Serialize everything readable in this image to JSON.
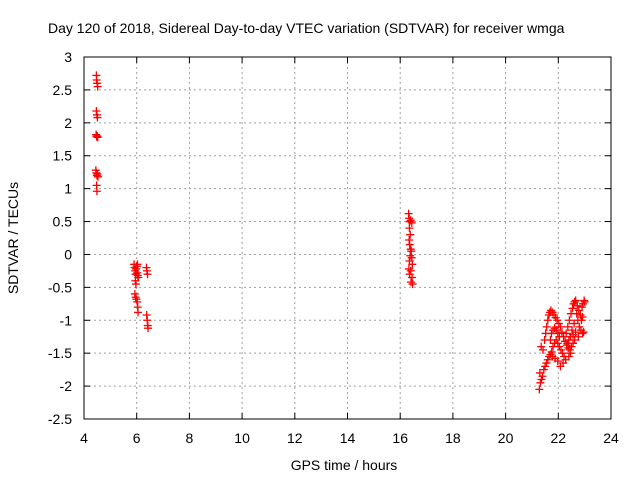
{
  "chart_data": {
    "type": "scatter",
    "title": "Day 120 of 2018, Sidereal Day-to-day VTEC variation (SDTVAR) for receiver wmga",
    "xlabel": "GPS time / hours",
    "ylabel": "SDTVAR / TECUs",
    "xlim": [
      4,
      24
    ],
    "ylim": [
      -2.5,
      3
    ],
    "xticks": [
      4,
      6,
      8,
      10,
      12,
      14,
      16,
      18,
      20,
      22,
      24
    ],
    "xtick_labels": [
      "4",
      "6",
      "8",
      "10",
      "12",
      "14",
      "16",
      "18",
      "20",
      "22",
      "24"
    ],
    "yticks": [
      -2.5,
      -2,
      -1.5,
      -1,
      -0.5,
      0,
      0.5,
      1,
      1.5,
      2,
      2.5,
      3
    ],
    "ytick_labels": [
      "-2.5",
      "-2",
      "-1.5",
      "-1",
      "-0.5",
      "0",
      "0.5",
      "1",
      "1.5",
      "2",
      "2.5",
      "3"
    ],
    "grid": true,
    "marker": "+",
    "marker_color": "#ff0000",
    "series": [
      {
        "name": "SDTVAR",
        "points": [
          [
            4.47,
            2.72
          ],
          [
            4.48,
            2.65
          ],
          [
            4.5,
            2.6
          ],
          [
            4.52,
            2.55
          ],
          [
            4.47,
            2.18
          ],
          [
            4.49,
            2.12
          ],
          [
            4.51,
            2.08
          ],
          [
            4.46,
            1.82
          ],
          [
            4.48,
            1.79
          ],
          [
            4.5,
            1.8
          ],
          [
            4.52,
            1.78
          ],
          [
            4.45,
            1.28
          ],
          [
            4.47,
            1.24
          ],
          [
            4.49,
            1.2
          ],
          [
            4.51,
            1.22
          ],
          [
            4.53,
            1.18
          ],
          [
            4.48,
            1.05
          ],
          [
            4.49,
            0.96
          ],
          [
            5.9,
            -0.15
          ],
          [
            5.92,
            -0.2
          ],
          [
            5.94,
            -0.25
          ],
          [
            5.96,
            -0.3
          ],
          [
            5.98,
            -0.22
          ],
          [
            6.0,
            -0.18
          ],
          [
            6.02,
            -0.28
          ],
          [
            6.04,
            -0.32
          ],
          [
            6.06,
            -0.35
          ],
          [
            6.03,
            -0.15
          ],
          [
            5.95,
            -0.4
          ],
          [
            5.97,
            -0.45
          ],
          [
            5.93,
            -0.6
          ],
          [
            5.96,
            -0.65
          ],
          [
            5.99,
            -0.68
          ],
          [
            6.02,
            -0.72
          ],
          [
            6.04,
            -0.8
          ],
          [
            6.05,
            -0.88
          ],
          [
            6.37,
            -0.2
          ],
          [
            6.39,
            -0.25
          ],
          [
            6.41,
            -0.3
          ],
          [
            6.38,
            -0.92
          ],
          [
            6.4,
            -1.0
          ],
          [
            6.42,
            -1.08
          ],
          [
            6.43,
            -1.12
          ],
          [
            16.32,
            0.62
          ],
          [
            16.34,
            0.55
          ],
          [
            16.36,
            0.5
          ],
          [
            16.4,
            0.52
          ],
          [
            16.44,
            0.48
          ],
          [
            16.35,
            0.4
          ],
          [
            16.38,
            0.3
          ],
          [
            16.34,
            0.22
          ],
          [
            16.36,
            0.15
          ],
          [
            16.4,
            0.08
          ],
          [
            16.42,
            0.05
          ],
          [
            16.38,
            -0.02
          ],
          [
            16.44,
            -0.05
          ],
          [
            16.35,
            -0.1
          ],
          [
            16.46,
            -0.15
          ],
          [
            16.33,
            -0.22
          ],
          [
            16.4,
            -0.25
          ],
          [
            16.36,
            -0.3
          ],
          [
            16.45,
            -0.35
          ],
          [
            16.41,
            -0.42
          ],
          [
            16.47,
            -0.45
          ],
          [
            21.28,
            -2.05
          ],
          [
            21.32,
            -1.95
          ],
          [
            21.36,
            -1.9
          ],
          [
            21.4,
            -1.85
          ],
          [
            21.3,
            -1.8
          ],
          [
            21.45,
            -1.75
          ],
          [
            21.5,
            -1.7
          ],
          [
            21.55,
            -1.65
          ],
          [
            21.6,
            -1.6
          ],
          [
            21.65,
            -1.55
          ],
          [
            21.7,
            -1.52
          ],
          [
            21.75,
            -1.48
          ],
          [
            21.35,
            -1.4
          ],
          [
            21.42,
            -1.45
          ],
          [
            21.48,
            -1.3
          ],
          [
            21.52,
            -1.2
          ],
          [
            21.56,
            -1.1
          ],
          [
            21.6,
            -1.0
          ],
          [
            21.64,
            -0.92
          ],
          [
            21.68,
            -0.88
          ],
          [
            21.72,
            -0.85
          ],
          [
            21.78,
            -0.88
          ],
          [
            21.84,
            -0.92
          ],
          [
            21.9,
            -0.96
          ],
          [
            21.96,
            -1.0
          ],
          [
            22.02,
            -1.05
          ],
          [
            22.08,
            -1.1
          ],
          [
            22.14,
            -1.18
          ],
          [
            22.2,
            -1.25
          ],
          [
            22.26,
            -1.32
          ],
          [
            22.32,
            -1.38
          ],
          [
            22.38,
            -1.42
          ],
          [
            22.44,
            -1.45
          ],
          [
            22.5,
            -1.4
          ],
          [
            22.56,
            -1.35
          ],
          [
            22.62,
            -1.3
          ],
          [
            21.8,
            -1.4
          ],
          [
            21.86,
            -1.35
          ],
          [
            21.92,
            -1.3
          ],
          [
            21.98,
            -1.35
          ],
          [
            22.04,
            -1.4
          ],
          [
            22.1,
            -1.45
          ],
          [
            22.16,
            -1.5
          ],
          [
            22.22,
            -1.55
          ],
          [
            22.28,
            -1.6
          ],
          [
            22.18,
            -1.65
          ],
          [
            22.08,
            -1.7
          ],
          [
            21.98,
            -1.62
          ],
          [
            21.88,
            -1.58
          ],
          [
            21.78,
            -1.55
          ],
          [
            21.7,
            -1.3
          ],
          [
            21.74,
            -1.2
          ],
          [
            21.8,
            -1.15
          ],
          [
            21.86,
            -1.12
          ],
          [
            21.92,
            -1.15
          ],
          [
            21.98,
            -1.2
          ],
          [
            22.04,
            -1.25
          ],
          [
            22.3,
            -1.2
          ],
          [
            22.36,
            -1.1
          ],
          [
            22.42,
            -1.0
          ],
          [
            22.48,
            -0.9
          ],
          [
            22.54,
            -0.82
          ],
          [
            22.58,
            -0.75
          ],
          [
            22.62,
            -0.72
          ],
          [
            22.66,
            -0.7
          ],
          [
            22.72,
            -0.78
          ],
          [
            22.78,
            -0.85
          ],
          [
            22.84,
            -0.92
          ],
          [
            22.9,
            -0.8
          ],
          [
            22.94,
            -0.75
          ],
          [
            22.98,
            -0.7
          ],
          [
            23.0,
            -0.72
          ],
          [
            22.7,
            -0.9
          ],
          [
            22.74,
            -1.0
          ],
          [
            22.8,
            -1.1
          ],
          [
            22.86,
            -1.15
          ],
          [
            22.92,
            -1.2
          ],
          [
            22.96,
            -1.18
          ],
          [
            22.6,
            -1.05
          ],
          [
            22.52,
            -1.15
          ],
          [
            22.46,
            -1.25
          ],
          [
            22.4,
            -1.3
          ],
          [
            22.34,
            -1.35
          ],
          [
            22.56,
            -1.22
          ],
          [
            22.66,
            -1.18
          ],
          [
            22.76,
            -1.25
          ],
          [
            22.88,
            -1.0
          ],
          [
            22.92,
            -0.95
          ],
          [
            22.4,
            -1.55
          ],
          [
            22.46,
            -1.5
          ]
        ]
      }
    ]
  }
}
